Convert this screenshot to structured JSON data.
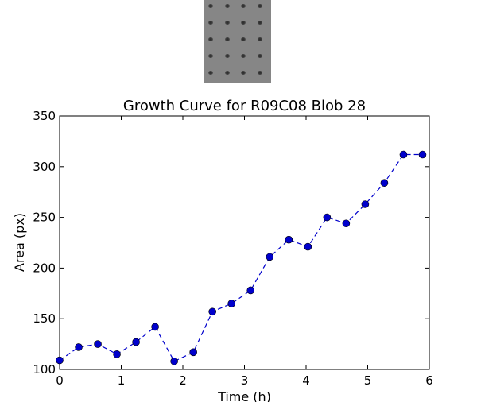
{
  "chart_data": {
    "type": "line",
    "title": "Growth Curve for R09C08 Blob 28",
    "xlabel": "Time (h)",
    "ylabel": "Area (px)",
    "xlim": [
      0,
      6
    ],
    "ylim": [
      100,
      350
    ],
    "xticks": [
      "0",
      "1",
      "2",
      "3",
      "4",
      "5",
      "6"
    ],
    "yticks": [
      "100",
      "150",
      "200",
      "250",
      "300",
      "350"
    ],
    "grid": false,
    "line_style": "dashed",
    "marker": "circle",
    "color": "#0000cc",
    "series": [
      {
        "x": [
          0,
          0.31,
          0.62,
          0.93,
          1.24,
          1.55,
          1.86,
          2.17,
          2.48,
          2.79,
          3.1,
          3.41,
          3.72,
          4.03,
          4.34,
          4.65,
          4.96,
          5.27,
          5.58,
          5.89
        ],
        "y": [
          109,
          122,
          125,
          115,
          127,
          142,
          108,
          117,
          157,
          165,
          178,
          211,
          228,
          221,
          250,
          244,
          263,
          284,
          312,
          312
        ]
      }
    ]
  },
  "thumbnail": {
    "background": "#868686",
    "rows": 5,
    "cols": 4
  }
}
